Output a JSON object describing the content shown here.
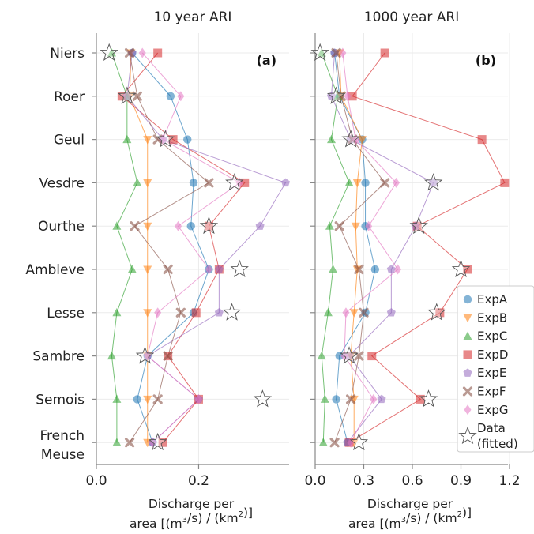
{
  "chart_data": {
    "type": "scatter",
    "categories": [
      "Niers",
      "Roer",
      "Geul",
      "Vesdre",
      "Ourthe",
      "Ambleve",
      "Lesse",
      "Sambre",
      "Semois",
      "French Meuse"
    ],
    "category_lines": [
      [
        "Niers"
      ],
      [
        "Roer"
      ],
      [
        "Geul"
      ],
      [
        "Vesdre"
      ],
      [
        "Ourthe"
      ],
      [
        "Ambleve"
      ],
      [
        "Lesse"
      ],
      [
        "Sambre"
      ],
      [
        "Semois"
      ],
      [
        "French",
        "Meuse"
      ]
    ],
    "xlabel": [
      "Discharge per",
      "area [(m",
      "3",
      "/s) / (km",
      "2",
      ")]"
    ],
    "legend": {
      "placement": "bottom-right"
    },
    "series_styles": [
      {
        "name": "ExpA",
        "color": "#1f77b4",
        "marker": "circle"
      },
      {
        "name": "ExpB",
        "color": "#ff7f0e",
        "marker": "triangle-down"
      },
      {
        "name": "ExpC",
        "color": "#2ca02c",
        "marker": "triangle-up"
      },
      {
        "name": "ExpD",
        "color": "#d62728",
        "marker": "square"
      },
      {
        "name": "ExpE",
        "color": "#9467bd",
        "marker": "pentagon"
      },
      {
        "name": "ExpF",
        "color": "#8c564b",
        "marker": "x"
      },
      {
        "name": "ExpG",
        "color": "#e377c2",
        "marker": "diamond"
      },
      {
        "name": "Data\n(fitted)",
        "color": "#888888",
        "marker": "star"
      }
    ],
    "panels": [
      {
        "title": "10 year ARI",
        "label": "(a)",
        "xlim": [
          0,
          0.38
        ],
        "xticks": [
          0.0,
          0.2
        ],
        "xtick_labels": [
          "0.0",
          "0.2"
        ],
        "series": [
          {
            "name": "ExpA",
            "values": [
              0.07,
              0.145,
              0.178,
              0.19,
              0.185,
              0.22,
              0.19,
              0.1,
              0.08,
              0.11
            ]
          },
          {
            "name": "ExpB",
            "values": [
              0.068,
              0.065,
              0.1,
              0.1,
              0.1,
              0.1,
              0.1,
              0.1,
              0.1,
              0.1
            ]
          },
          {
            "name": "ExpC",
            "values": [
              0.03,
              0.06,
              0.06,
              0.08,
              0.04,
              0.07,
              0.04,
              0.03,
              0.04,
              0.04
            ]
          },
          {
            "name": "ExpD",
            "values": [
              0.12,
              0.05,
              0.15,
              0.29,
              0.22,
              0.24,
              0.195,
              0.14,
              0.2,
              0.13
            ]
          },
          {
            "name": "ExpE",
            "values": [
              0.07,
              0.06,
              0.13,
              0.37,
              0.32,
              0.24,
              0.24,
              0.1,
              0.2,
              0.11
            ]
          },
          {
            "name": "ExpF",
            "values": [
              0.065,
              0.08,
              0.12,
              0.22,
              0.075,
              0.14,
              0.165,
              0.14,
              0.12,
              0.065
            ]
          },
          {
            "name": "ExpG",
            "values": [
              0.09,
              0.165,
              0.13,
              0.28,
              0.16,
              0.22,
              0.12,
              0.1,
              0.2,
              0.11
            ]
          },
          {
            "name": "Data\n(fitted)",
            "values": [
              0.025,
              0.06,
              0.135,
              0.27,
              0.22,
              0.28,
              0.265,
              0.095,
              0.325,
              0.12
            ]
          }
        ]
      },
      {
        "title": "1000 year ARI",
        "label": "(b)",
        "xlim": [
          0,
          1.2
        ],
        "xticks": [
          0.0,
          0.3,
          0.6,
          0.9,
          1.2
        ],
        "xtick_labels": [
          "0.0",
          "0.3",
          "0.6",
          "0.9",
          "1.2"
        ],
        "series": [
          {
            "name": "ExpA",
            "values": [
              0.12,
              0.15,
              0.29,
              0.31,
              0.31,
              0.37,
              0.31,
              0.15,
              0.13,
              0.2
            ]
          },
          {
            "name": "ExpB",
            "values": [
              0.15,
              0.16,
              0.29,
              0.26,
              0.25,
              0.26,
              0.24,
              0.22,
              0.24,
              0.24
            ]
          },
          {
            "name": "ExpC",
            "values": [
              0.04,
              0.14,
              0.1,
              0.21,
              0.09,
              0.11,
              0.08,
              0.04,
              0.06,
              0.05
            ]
          },
          {
            "name": "ExpD",
            "values": [
              0.43,
              0.23,
              1.03,
              1.17,
              0.63,
              0.94,
              0.77,
              0.35,
              0.65,
              0.21
            ]
          },
          {
            "name": "ExpE",
            "values": [
              0.12,
              0.1,
              0.22,
              0.73,
              0.62,
              0.47,
              0.47,
              0.21,
              0.41,
              0.2
            ]
          },
          {
            "name": "ExpF",
            "values": [
              0.13,
              0.16,
              0.23,
              0.43,
              0.15,
              0.27,
              0.3,
              0.27,
              0.22,
              0.12
            ]
          },
          {
            "name": "ExpG",
            "values": [
              0.17,
              0.2,
              0.25,
              0.5,
              0.33,
              0.51,
              0.19,
              0.18,
              0.36,
              0.22
            ]
          },
          {
            "name": "Data\n(fitted)",
            "values": [
              0.03,
              0.13,
              0.22,
              0.73,
              0.64,
              0.9,
              0.75,
              0.21,
              0.7,
              0.27
            ]
          }
        ]
      }
    ]
  }
}
